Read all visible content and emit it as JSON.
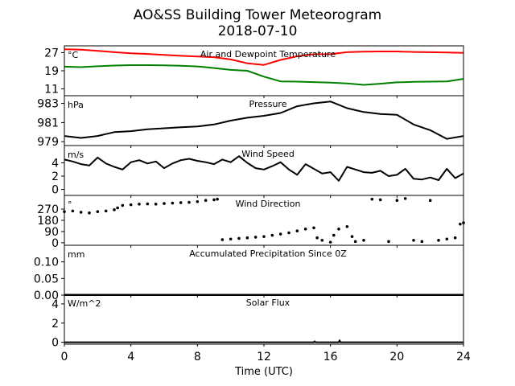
{
  "figure": {
    "title_line1": "AO&SS Building Tower Meteorogram",
    "title_line2": "2018-07-10",
    "xlabel": "Time (UTC)"
  },
  "colors": {
    "temperature": "#ff0000",
    "dewpoint": "#008000",
    "black": "#000000"
  },
  "chart_data": [
    {
      "type": "line",
      "title": "Air and Dewpoint Temperature",
      "unit": "°C",
      "xlim": [
        0,
        24
      ],
      "ylim": [
        8,
        30
      ],
      "yticks": [
        11,
        19,
        27
      ],
      "xticks": [
        0,
        4,
        8,
        12,
        16,
        20,
        24
      ],
      "series": [
        {
          "key": "temperature",
          "color": "#ff0000",
          "x": [
            0,
            1,
            2,
            3,
            4,
            5,
            6,
            7,
            8,
            9,
            10,
            11,
            12,
            13,
            14,
            15,
            16,
            17,
            18,
            19,
            20,
            21,
            22,
            23,
            24
          ],
          "y": [
            28.5,
            28.3,
            27.8,
            27.2,
            26.7,
            26.4,
            26.0,
            25.6,
            25.3,
            25.0,
            24.0,
            22.3,
            21.6,
            23.8,
            25.4,
            26.3,
            26.3,
            27.2,
            27.4,
            27.5,
            27.5,
            27.3,
            27.2,
            27.1,
            26.9
          ]
        },
        {
          "key": "dewpoint",
          "color": "#008000",
          "x": [
            0,
            1,
            2,
            3,
            4,
            5,
            6,
            7,
            8,
            9,
            10,
            11,
            12,
            13,
            14,
            15,
            16,
            17,
            18,
            19,
            20,
            21,
            22,
            23,
            24
          ],
          "y": [
            20.8,
            20.6,
            21.0,
            21.3,
            21.5,
            21.5,
            21.4,
            21.2,
            20.9,
            20.2,
            19.4,
            19.0,
            16.4,
            14.3,
            14.2,
            14.0,
            13.8,
            13.4,
            12.8,
            13.3,
            13.9,
            14.1,
            14.2,
            14.3,
            15.4
          ]
        }
      ]
    },
    {
      "type": "line",
      "title": "Pressure",
      "unit": "hPa",
      "xlim": [
        0,
        24
      ],
      "ylim": [
        978.6,
        983.8
      ],
      "yticks": [
        979,
        981,
        983
      ],
      "xticks": [
        0,
        4,
        8,
        12,
        16,
        20,
        24
      ],
      "series": [
        {
          "key": "pressure",
          "color": "#000000",
          "x": [
            0,
            1,
            2,
            3,
            4,
            5,
            6,
            7,
            8,
            9,
            10,
            11,
            12,
            13,
            14,
            15,
            16,
            17,
            18,
            19,
            20,
            21,
            22,
            23,
            24
          ],
          "y": [
            979.6,
            979.4,
            979.6,
            980.0,
            980.1,
            980.3,
            980.4,
            980.5,
            980.6,
            980.8,
            981.2,
            981.5,
            981.7,
            982.0,
            982.7,
            983.0,
            983.2,
            982.5,
            982.1,
            981.9,
            981.8,
            980.8,
            980.2,
            979.3,
            979.6
          ]
        }
      ]
    },
    {
      "type": "line",
      "title": "Wind Speed",
      "unit": "m/s",
      "xlim": [
        0,
        24
      ],
      "ylim": [
        -0.9,
        6.6
      ],
      "yticks": [
        0,
        2,
        4
      ],
      "xticks": [
        0,
        4,
        8,
        12,
        16,
        20,
        24
      ],
      "series": [
        {
          "key": "wind_speed",
          "color": "#000000",
          "x": [
            0,
            0.5,
            1,
            1.5,
            2,
            2.5,
            3,
            3.5,
            4,
            4.5,
            5,
            5.5,
            6,
            6.5,
            7,
            7.5,
            8,
            8.5,
            9,
            9.5,
            10,
            10.5,
            11,
            11.5,
            12,
            12.5,
            13,
            13.5,
            14,
            14.5,
            15,
            15.5,
            16,
            16.5,
            17,
            17.5,
            18,
            18.5,
            19,
            19.5,
            20,
            20.5,
            21,
            21.5,
            22,
            22.5,
            23,
            23.5,
            24
          ],
          "y": [
            4.5,
            4.2,
            3.8,
            3.6,
            4.8,
            3.9,
            3.4,
            3.0,
            4.1,
            4.4,
            3.9,
            4.2,
            3.2,
            3.9,
            4.4,
            4.6,
            4.3,
            4.1,
            3.8,
            4.5,
            4.1,
            5.0,
            4.0,
            3.2,
            3.0,
            3.5,
            4.1,
            3.0,
            2.2,
            3.8,
            3.1,
            2.4,
            2.6,
            1.3,
            3.4,
            3.0,
            2.6,
            2.5,
            2.8,
            2.0,
            2.2,
            3.1,
            1.6,
            1.5,
            1.8,
            1.4,
            3.1,
            1.7,
            2.4
          ]
        }
      ]
    },
    {
      "type": "scatter",
      "title": "Wind Direction",
      "unit": "°",
      "xlim": [
        0,
        24
      ],
      "ylim": [
        -20,
        380
      ],
      "yticks": [
        0,
        90,
        180,
        270
      ],
      "xticks": [
        0,
        4,
        8,
        12,
        16,
        20,
        24
      ],
      "series": [
        {
          "key": "wind_direction",
          "color": "#000000",
          "x": [
            0,
            0.5,
            1,
            1.5,
            2,
            2.5,
            3,
            3.2,
            3.5,
            4,
            4.5,
            5,
            5.5,
            6,
            6.5,
            7,
            7.5,
            8,
            8.5,
            9,
            9.2,
            9.5,
            10,
            10.5,
            11,
            11.5,
            12,
            12.5,
            13,
            13.5,
            14,
            14.5,
            15,
            15.2,
            15.5,
            16,
            16.2,
            16.5,
            17,
            17.3,
            17.5,
            18,
            18.5,
            19,
            19.5,
            20,
            20.5,
            21,
            21.5,
            22,
            22.5,
            23,
            23.5,
            23.8,
            24
          ],
          "y": [
            250,
            255,
            245,
            240,
            250,
            255,
            265,
            280,
            300,
            305,
            310,
            312,
            310,
            315,
            318,
            322,
            324,
            330,
            340,
            345,
            350,
            25,
            30,
            35,
            40,
            45,
            50,
            60,
            70,
            80,
            95,
            110,
            120,
            40,
            20,
            5,
            60,
            110,
            130,
            50,
            10,
            20,
            350,
            345,
            10,
            340,
            355,
            20,
            10,
            340,
            20,
            30,
            40,
            150,
            160
          ]
        }
      ]
    },
    {
      "type": "line",
      "title": "Accumulated Precipitation Since 0Z",
      "unit": "mm",
      "xlim": [
        0,
        24
      ],
      "ylim": [
        0,
        0.15
      ],
      "yticks": [
        "0.00",
        "0.05",
        "0.10"
      ],
      "xticks": [
        0,
        4,
        8,
        12,
        16,
        20,
        24
      ],
      "series": [
        {
          "key": "precip",
          "color": "#000000",
          "x": [
            0,
            24
          ],
          "y": [
            0,
            0
          ]
        }
      ]
    },
    {
      "type": "line",
      "title": "Solar Flux",
      "unit": "W/m^2",
      "xlim": [
        0,
        24
      ],
      "ylim": [
        -0.2,
        5
      ],
      "yticks": [
        0,
        2,
        4
      ],
      "xticks": [
        0,
        4,
        8,
        12,
        16,
        20,
        24
      ],
      "series": [
        {
          "key": "solar",
          "color": "#000000",
          "x": [
            0,
            15.0,
            15.05,
            15.1,
            16.5,
            16.55,
            16.6,
            24
          ],
          "y": [
            0,
            0,
            0.1,
            0,
            0,
            0.2,
            0,
            0
          ]
        }
      ]
    }
  ]
}
